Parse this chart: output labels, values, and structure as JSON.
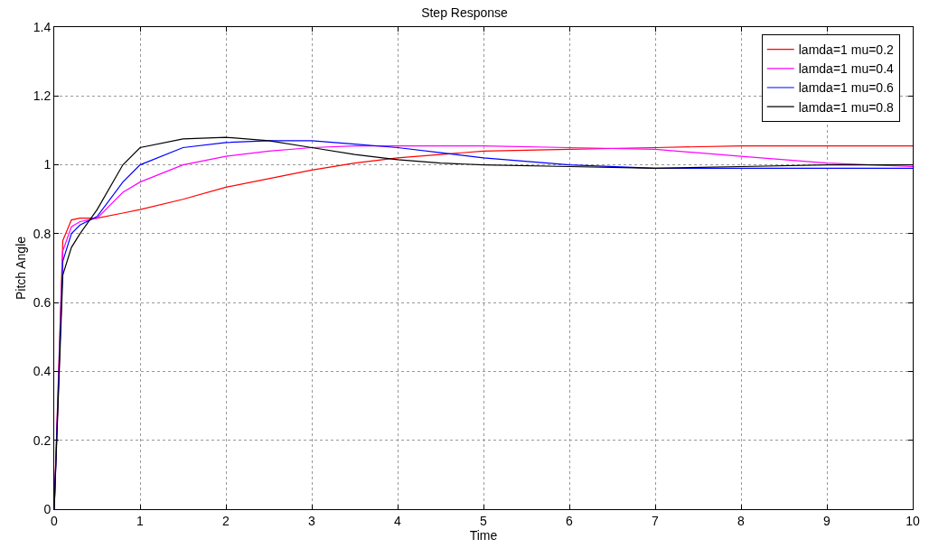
{
  "chart_data": {
    "type": "line",
    "title": "Step Response",
    "xlabel": "Time",
    "ylabel": "Pitch Angle",
    "x": [
      0,
      0.1,
      0.2,
      0.3,
      0.5,
      0.8,
      1,
      1.5,
      2,
      2.5,
      3,
      3.5,
      4,
      4.5,
      5,
      6,
      7,
      8,
      9,
      10
    ],
    "series": [
      {
        "name": "lamda=1 mu=0.2",
        "color": "#ff0000",
        "values": [
          0,
          0.78,
          0.84,
          0.845,
          0.845,
          0.86,
          0.87,
          0.9,
          0.935,
          0.96,
          0.985,
          1.005,
          1.02,
          1.03,
          1.04,
          1.045,
          1.05,
          1.055,
          1.055,
          1.055
        ]
      },
      {
        "name": "lamda=1 mu=0.4",
        "color": "#ff00ff",
        "values": [
          0,
          0.75,
          0.82,
          0.835,
          0.845,
          0.92,
          0.95,
          1.0,
          1.025,
          1.04,
          1.05,
          1.055,
          1.055,
          1.055,
          1.055,
          1.05,
          1.045,
          1.025,
          1.005,
          0.995
        ]
      },
      {
        "name": "lamda=1 mu=0.6",
        "color": "#0000ff",
        "values": [
          0,
          0.72,
          0.8,
          0.825,
          0.85,
          0.95,
          1.0,
          1.05,
          1.065,
          1.07,
          1.07,
          1.06,
          1.05,
          1.035,
          1.02,
          1.0,
          0.99,
          0.99,
          0.99,
          0.99
        ]
      },
      {
        "name": "lamda=1 mu=0.8",
        "color": "#000000",
        "values": [
          0,
          0.68,
          0.76,
          0.8,
          0.87,
          1.0,
          1.05,
          1.075,
          1.08,
          1.07,
          1.05,
          1.03,
          1.015,
          1.005,
          1.0,
          0.995,
          0.99,
          0.995,
          1.0,
          1.0
        ]
      }
    ],
    "xlim": [
      0,
      10
    ],
    "xticks": [
      0,
      1,
      2,
      3,
      4,
      5,
      6,
      7,
      8,
      9,
      10
    ],
    "ylim": [
      0,
      1.4
    ],
    "yticks": [
      0,
      0.2,
      0.4,
      0.6,
      0.8,
      1,
      1.2,
      1.4
    ],
    "grid": true,
    "legend": "top right",
    "line_style": "solid",
    "marker": "none"
  }
}
